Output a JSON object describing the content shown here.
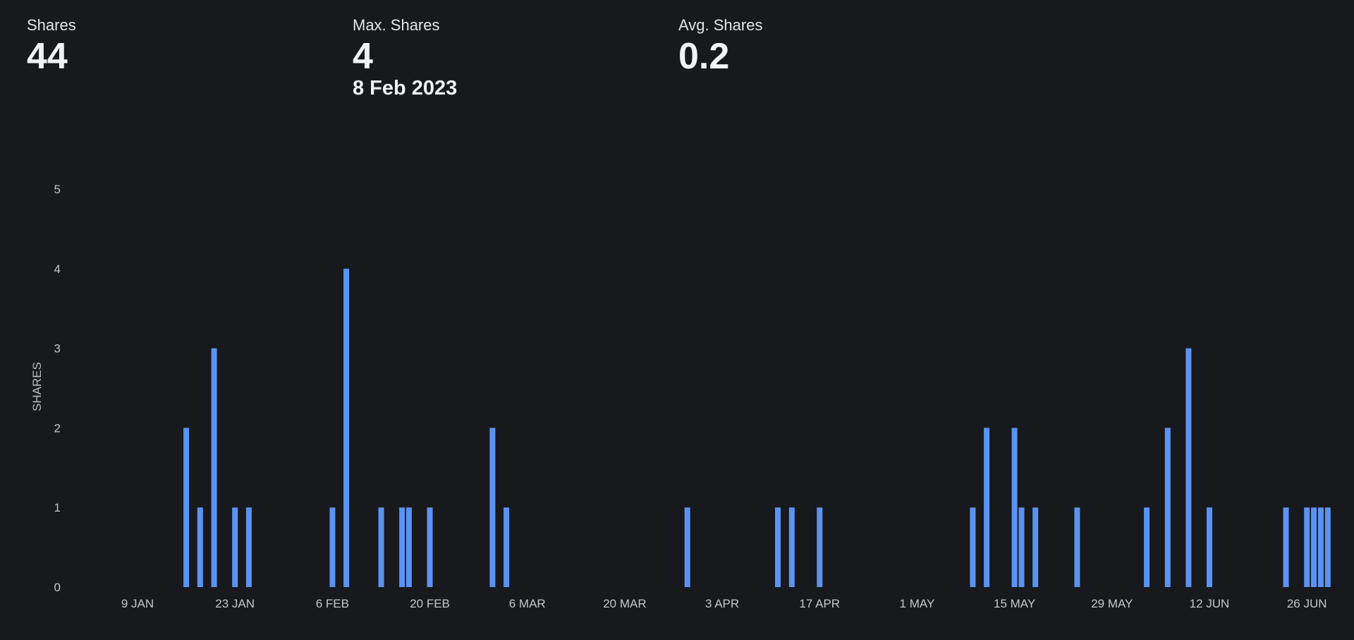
{
  "stats": {
    "shares": {
      "label": "Shares",
      "value": "44"
    },
    "max": {
      "label": "Max. Shares",
      "value": "4",
      "date": "8 Feb 2023"
    },
    "avg": {
      "label": "Avg. Shares",
      "value": "0.2"
    }
  },
  "colors": {
    "background": "#18191c",
    "bar": "#5b93f3",
    "text": "#eceef1"
  },
  "chart_data": {
    "type": "bar",
    "title": "",
    "xlabel": "",
    "ylabel": "SHARES",
    "ylim": [
      0,
      5
    ],
    "yticks": [
      "0",
      "1",
      "2",
      "3",
      "4",
      "5"
    ],
    "grid": false,
    "xticks": [
      {
        "date": "2023-01-09",
        "label": "9 JAN"
      },
      {
        "date": "2023-01-23",
        "label": "23 JAN"
      },
      {
        "date": "2023-02-06",
        "label": "6 FEB"
      },
      {
        "date": "2023-02-20",
        "label": "20 FEB"
      },
      {
        "date": "2023-03-06",
        "label": "6 MAR"
      },
      {
        "date": "2023-03-20",
        "label": "20 MAR"
      },
      {
        "date": "2023-04-03",
        "label": "3 APR"
      },
      {
        "date": "2023-04-17",
        "label": "17 APR"
      },
      {
        "date": "2023-05-01",
        "label": "1 MAY"
      },
      {
        "date": "2023-05-15",
        "label": "15 MAY"
      },
      {
        "date": "2023-05-29",
        "label": "29 MAY"
      },
      {
        "date": "2023-06-12",
        "label": "12 JUN"
      },
      {
        "date": "2023-06-26",
        "label": "26 JUN"
      }
    ],
    "points": [
      {
        "date": "2023-01-16",
        "value": 2
      },
      {
        "date": "2023-01-18",
        "value": 1
      },
      {
        "date": "2023-01-20",
        "value": 3
      },
      {
        "date": "2023-01-23",
        "value": 1
      },
      {
        "date": "2023-01-25",
        "value": 1
      },
      {
        "date": "2023-02-06",
        "value": 1
      },
      {
        "date": "2023-02-08",
        "value": 4
      },
      {
        "date": "2023-02-13",
        "value": 1
      },
      {
        "date": "2023-02-16",
        "value": 1
      },
      {
        "date": "2023-02-17",
        "value": 1
      },
      {
        "date": "2023-02-20",
        "value": 1
      },
      {
        "date": "2023-03-01",
        "value": 2
      },
      {
        "date": "2023-03-03",
        "value": 1
      },
      {
        "date": "2023-03-29",
        "value": 1
      },
      {
        "date": "2023-04-11",
        "value": 1
      },
      {
        "date": "2023-04-13",
        "value": 1
      },
      {
        "date": "2023-04-17",
        "value": 1
      },
      {
        "date": "2023-05-09",
        "value": 1
      },
      {
        "date": "2023-05-11",
        "value": 2
      },
      {
        "date": "2023-05-15",
        "value": 2
      },
      {
        "date": "2023-05-16",
        "value": 1
      },
      {
        "date": "2023-05-18",
        "value": 1
      },
      {
        "date": "2023-05-24",
        "value": 1
      },
      {
        "date": "2023-06-03",
        "value": 1
      },
      {
        "date": "2023-06-06",
        "value": 2
      },
      {
        "date": "2023-06-09",
        "value": 3
      },
      {
        "date": "2023-06-12",
        "value": 1
      },
      {
        "date": "2023-06-23",
        "value": 1
      },
      {
        "date": "2023-06-26",
        "value": 1
      },
      {
        "date": "2023-06-27",
        "value": 1
      },
      {
        "date": "2023-06-28",
        "value": 1
      },
      {
        "date": "2023-06-29",
        "value": 1
      }
    ]
  }
}
